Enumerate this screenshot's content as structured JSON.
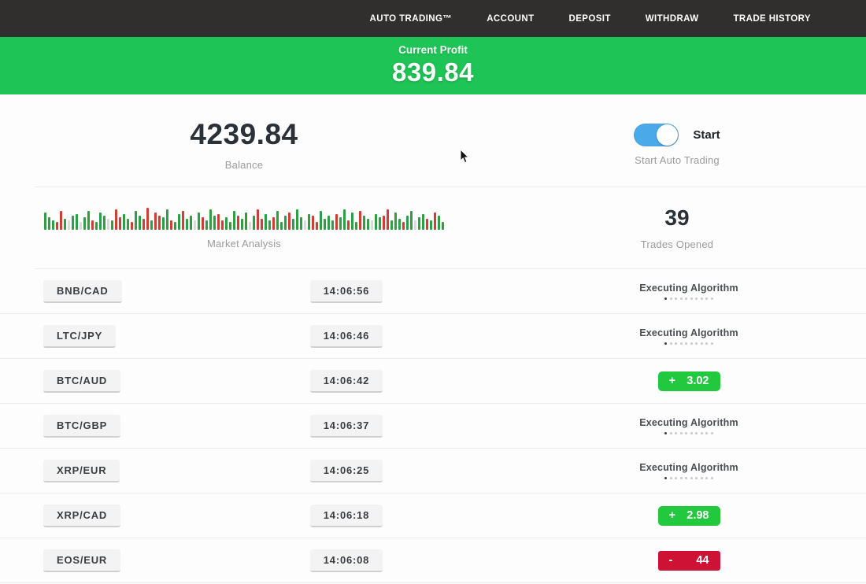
{
  "colors": {
    "nav_bg": "#312e2e",
    "banner_green": "#1ec455",
    "badge_green": "#22c93e",
    "badge_red": "#ce1236",
    "toggle_blue": "#4aa9e9",
    "bar_green": "#2f9e44",
    "bar_red": "#cf3f36",
    "bar_pale": "#d9d9d9"
  },
  "nav": {
    "items": [
      "AUTO TRADING™",
      "ACCOUNT",
      "DEPOSIT",
      "WITHDRAW",
      "TRADE HISTORY"
    ]
  },
  "banner": {
    "label": "Current Profit",
    "value": "839.84"
  },
  "stats": {
    "balance": {
      "value": "4239.84",
      "label": "Balance"
    },
    "toggle": {
      "state_label": "Start",
      "caption": "Start Auto Trading",
      "on": true
    },
    "market": {
      "label": "Market Analysis",
      "bars": [
        "g22",
        "g16",
        "g12",
        "r10",
        "r24",
        "g14",
        "p12",
        "g18",
        "g20",
        "p10",
        "g16",
        "g24",
        "r12",
        "g10",
        "g22",
        "g18",
        "p14",
        "g12",
        "r26",
        "r16",
        "g20",
        "g14",
        "r10",
        "g24",
        "g18",
        "r14",
        "r28",
        "g12",
        "r22",
        "r18",
        "g16",
        "g26",
        "r12",
        "g10",
        "g20",
        "r24",
        "g14",
        "g18",
        "p12",
        "g22",
        "r16",
        "g12",
        "g26",
        "g18",
        "r20",
        "r12",
        "g16",
        "g10",
        "g24",
        "r18",
        "g14",
        "g22",
        "p10",
        "g18",
        "r26",
        "r14",
        "g20",
        "g12",
        "r16",
        "g24",
        "g10",
        "g18",
        "r22",
        "g14",
        "g26",
        "g16",
        "p12",
        "g20",
        "r18",
        "r10",
        "g24",
        "g14",
        "g18",
        "g12",
        "r20",
        "g16",
        "g26",
        "r12",
        "g22",
        "g10",
        "r24",
        "g18",
        "g14",
        "p12",
        "g20",
        "g16",
        "r18",
        "r26",
        "g12",
        "g22",
        "g14",
        "r10",
        "g18",
        "g24",
        "p12",
        "g16",
        "g20",
        "r14",
        "g12",
        "r22",
        "g18",
        "g10"
      ]
    },
    "trades_opened": {
      "value": "39",
      "label": "Trades Opened"
    }
  },
  "trades": {
    "executing_label": "Executing Algorithm",
    "executing_dots": 10,
    "rows": [
      {
        "pair": "BNB/CAD",
        "time": "14:06:56",
        "status": {
          "type": "executing"
        }
      },
      {
        "pair": "LTC/JPY",
        "time": "14:06:46",
        "status": {
          "type": "executing"
        }
      },
      {
        "pair": "BTC/AUD",
        "time": "14:06:42",
        "status": {
          "type": "profit",
          "sign": "+",
          "amount": "3.02"
        }
      },
      {
        "pair": "BTC/GBP",
        "time": "14:06:37",
        "status": {
          "type": "executing"
        }
      },
      {
        "pair": "XRP/EUR",
        "time": "14:06:25",
        "status": {
          "type": "executing"
        }
      },
      {
        "pair": "XRP/CAD",
        "time": "14:06:18",
        "status": {
          "type": "profit",
          "sign": "+",
          "amount": "2.98"
        }
      },
      {
        "pair": "EOS/EUR",
        "time": "14:06:08",
        "status": {
          "type": "loss",
          "sign": "-",
          "amount": "44"
        }
      }
    ]
  }
}
